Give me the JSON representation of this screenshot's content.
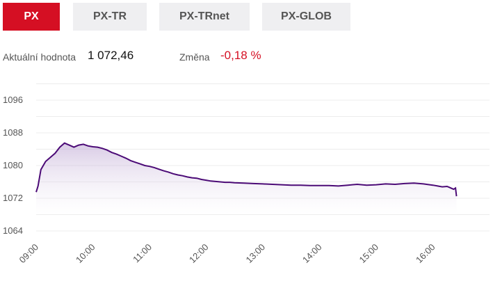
{
  "tabs": [
    {
      "label": "PX",
      "active": true
    },
    {
      "label": "PX-TR",
      "active": false
    },
    {
      "label": "PX-TRnet",
      "active": false
    },
    {
      "label": "PX-GLOB",
      "active": false
    }
  ],
  "stats": {
    "current_label": "Aktuální hodnota",
    "current_value": "1 072,46",
    "change_label": "Změna",
    "change_value": "-0,18 %"
  },
  "colors": {
    "accent": "#d50f23",
    "line": "#4b0a76",
    "change_negative": "#d50f23"
  },
  "chart_data": {
    "type": "area",
    "ylim": [
      1060,
      1100
    ],
    "yticks": [
      "1096",
      "1088",
      "1080",
      "1072",
      "1064"
    ],
    "ytick_values": [
      1096,
      1088,
      1080,
      1072,
      1064
    ],
    "xticks": [
      "09:00",
      "10:00",
      "11:00",
      "12:00",
      "13:00",
      "14:00",
      "15:00",
      "16:00"
    ],
    "grid": true,
    "x": [
      "09:00",
      "09:02",
      "09:05",
      "09:10",
      "09:15",
      "09:20",
      "09:25",
      "09:30",
      "09:35",
      "09:40",
      "09:45",
      "09:50",
      "09:55",
      "10:00",
      "10:05",
      "10:10",
      "10:15",
      "10:20",
      "10:25",
      "10:30",
      "10:35",
      "10:40",
      "10:45",
      "10:50",
      "10:55",
      "11:00",
      "11:05",
      "11:10",
      "11:15",
      "11:20",
      "11:25",
      "11:30",
      "11:35",
      "11:40",
      "11:45",
      "11:50",
      "11:55",
      "12:00",
      "12:05",
      "12:10",
      "12:15",
      "12:20",
      "12:25",
      "12:30",
      "12:40",
      "12:50",
      "13:00",
      "13:10",
      "13:20",
      "13:30",
      "13:40",
      "13:50",
      "14:00",
      "14:10",
      "14:20",
      "14:30",
      "14:40",
      "14:50",
      "15:00",
      "15:10",
      "15:20",
      "15:30",
      "15:40",
      "15:50",
      "16:00",
      "16:05",
      "16:10",
      "16:15",
      "16:18",
      "16:20",
      "16:22",
      "16:24",
      "16:25"
    ],
    "y": [
      1073.5,
      1075.0,
      1079.0,
      1081.0,
      1082.0,
      1083.0,
      1084.5,
      1085.5,
      1085.0,
      1084.5,
      1085.0,
      1085.2,
      1084.8,
      1084.6,
      1084.5,
      1084.2,
      1083.8,
      1083.2,
      1082.8,
      1082.3,
      1081.8,
      1081.2,
      1080.8,
      1080.4,
      1080.0,
      1079.8,
      1079.5,
      1079.1,
      1078.7,
      1078.4,
      1078.0,
      1077.7,
      1077.5,
      1077.2,
      1077.0,
      1076.9,
      1076.6,
      1076.4,
      1076.2,
      1076.1,
      1076.0,
      1075.9,
      1075.9,
      1075.8,
      1075.7,
      1075.6,
      1075.5,
      1075.4,
      1075.3,
      1075.2,
      1075.2,
      1075.1,
      1075.1,
      1075.1,
      1075.0,
      1075.2,
      1075.4,
      1075.2,
      1075.3,
      1075.5,
      1075.4,
      1075.6,
      1075.7,
      1075.5,
      1075.2,
      1075.0,
      1074.8,
      1074.9,
      1074.6,
      1074.4,
      1074.2,
      1074.5,
      1072.5
    ]
  }
}
